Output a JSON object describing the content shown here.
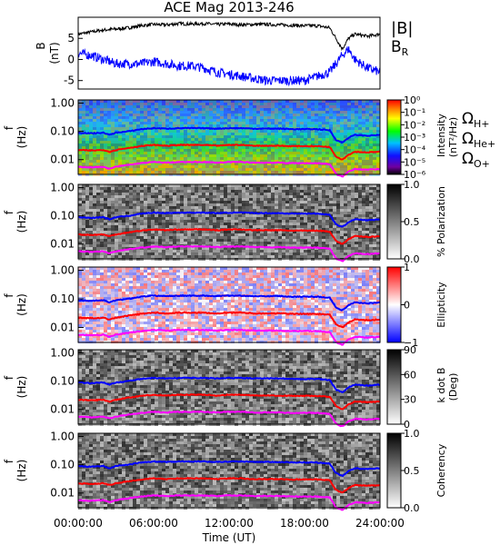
{
  "chart_data": {
    "title": "ACE Mag 2013-246",
    "xlabel": "Time (UT)",
    "x_ticks": [
      "00:00:00",
      "06:00:00",
      "12:00:00",
      "18:00:00",
      "24:00:00"
    ],
    "x_range_hours": [
      0,
      24
    ],
    "panels": [
      {
        "type": "line",
        "ylabel": "B",
        "yunit": "(nT)",
        "y_ticks": [
          5,
          0,
          -5
        ],
        "ylim": [
          -7,
          10
        ],
        "legend": [
          "|B|",
          "B_R"
        ],
        "series": [
          {
            "name": "|B|",
            "color": "#000000",
            "x": [
              0,
              1,
              2,
              3,
              4,
              5,
              6,
              7,
              8,
              9,
              10,
              11,
              12,
              13,
              14,
              15,
              16,
              17,
              18,
              19,
              20,
              20.5,
              21,
              21.5,
              22,
              23,
              24
            ],
            "values": [
              6,
              6.5,
              7,
              7.2,
              7.5,
              8,
              8.3,
              8.2,
              8.5,
              8.4,
              8.5,
              8.3,
              8.4,
              8.2,
              8.3,
              8.3,
              8.2,
              8.1,
              8,
              8,
              7.5,
              5,
              2.5,
              5,
              6,
              5.5,
              6
            ]
          },
          {
            "name": "B_R",
            "color": "#0000ff",
            "x": [
              0,
              1,
              2,
              3,
              4,
              5,
              6,
              7,
              8,
              9,
              10,
              11,
              12,
              13,
              14,
              15,
              16,
              17,
              18,
              19,
              20,
              20.5,
              21,
              21.5,
              22,
              23,
              24
            ],
            "values": [
              1.5,
              1,
              0,
              -1,
              -1,
              -1,
              -0.5,
              -1,
              -1.5,
              -1.5,
              -2,
              -3,
              -3.5,
              -4,
              -4.5,
              -5,
              -5,
              -5,
              -5,
              -4,
              -3,
              -1,
              1,
              2.5,
              0,
              -2,
              -3
            ]
          }
        ]
      },
      {
        "type": "heatmap",
        "ylabel": "f",
        "yunit": "(Hz)",
        "y_ticks": [
          "1.00",
          "0.10",
          "0.01"
        ],
        "colorbar": {
          "label": "Intensity",
          "unit": "(nT²/Hz)",
          "ticks": [
            "10⁰",
            "10⁻¹",
            "10⁻²",
            "10⁻³",
            "10⁻⁴",
            "10⁻⁵",
            "10⁻⁶"
          ]
        },
        "gyro_legend": [
          {
            "label": "Ω",
            "sub": "H+",
            "color": "#0000ff"
          },
          {
            "label": "Ω",
            "sub": "He+",
            "color": "#ff0000"
          },
          {
            "label": "Ω",
            "sub": "O+",
            "color": "#ff00ff"
          }
        ]
      },
      {
        "type": "heatmap",
        "ylabel": "f",
        "yunit": "(Hz)",
        "y_ticks": [
          "1.00",
          "0.10",
          "0.01"
        ],
        "colorbar": {
          "label": "% Polarization",
          "ticks": [
            "1.0",
            "0.5",
            "0.0"
          ]
        }
      },
      {
        "type": "heatmap",
        "ylabel": "f",
        "yunit": "(Hz)",
        "y_ticks": [
          "1.00",
          "0.10",
          "0.01"
        ],
        "colorbar": {
          "label": "Ellipticity",
          "ticks": [
            "1",
            "0",
            "−1"
          ]
        }
      },
      {
        "type": "heatmap",
        "ylabel": "f",
        "yunit": "(Hz)",
        "y_ticks": [
          "1.00",
          "0.10",
          "0.01"
        ],
        "colorbar": {
          "label": "k dot B",
          "unit": "(Deg)",
          "ticks": [
            "90",
            "60",
            "30",
            "0"
          ]
        }
      },
      {
        "type": "heatmap",
        "ylabel": "f",
        "yunit": "(Hz)",
        "y_ticks": [
          "1.00",
          "0.10",
          "0.01"
        ],
        "colorbar": {
          "label": "Coherency",
          "ticks": [
            "1.0",
            "0.5",
            "0.0"
          ]
        }
      }
    ],
    "gyrofrequency_lines_hz": {
      "x": [
        0,
        1,
        2,
        2.5,
        3,
        4,
        5,
        6,
        7,
        8,
        9,
        10,
        11,
        12,
        13,
        14,
        15,
        16,
        17,
        18,
        19,
        20,
        20.5,
        21,
        21.5,
        22,
        23,
        24
      ],
      "H+": [
        0.09,
        0.085,
        0.09,
        0.075,
        0.09,
        0.1,
        0.12,
        0.13,
        0.125,
        0.13,
        0.13,
        0.13,
        0.125,
        0.13,
        0.13,
        0.125,
        0.125,
        0.125,
        0.12,
        0.12,
        0.12,
        0.11,
        0.05,
        0.04,
        0.06,
        0.075,
        0.07,
        0.075
      ],
      "He+": [
        0.022,
        0.021,
        0.022,
        0.019,
        0.022,
        0.026,
        0.03,
        0.033,
        0.031,
        0.033,
        0.033,
        0.033,
        0.031,
        0.033,
        0.033,
        0.031,
        0.031,
        0.031,
        0.03,
        0.03,
        0.03,
        0.028,
        0.013,
        0.01,
        0.015,
        0.019,
        0.018,
        0.019
      ],
      "O+": [
        0.0056,
        0.0053,
        0.0056,
        0.0047,
        0.0056,
        0.0065,
        0.0075,
        0.0082,
        0.0078,
        0.0082,
        0.0082,
        0.0082,
        0.0078,
        0.0082,
        0.0082,
        0.0078,
        0.0078,
        0.0078,
        0.0075,
        0.0075,
        0.0075,
        0.0069,
        0.0031,
        0.0025,
        0.0038,
        0.0047,
        0.0044,
        0.0047
      ]
    },
    "freq_range_hz": [
      0.003,
      1.3
    ]
  }
}
